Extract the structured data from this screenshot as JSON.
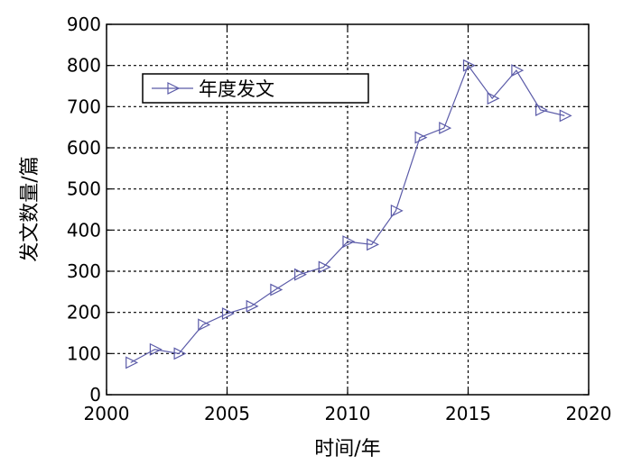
{
  "chart_data": {
    "type": "line",
    "title": "",
    "xlabel": "时间/年",
    "ylabel": "发文数量/篇",
    "xlim": [
      2000,
      2020
    ],
    "ylim": [
      0,
      900
    ],
    "x_ticks": [
      2000,
      2005,
      2010,
      2015,
      2020
    ],
    "y_ticks": [
      0,
      100,
      200,
      300,
      400,
      500,
      600,
      700,
      800,
      900
    ],
    "grid": true,
    "legend_position": "top-left",
    "series": [
      {
        "name": "年度发文",
        "color": "#5B5BA8",
        "marker": "triangle-right",
        "x": [
          2001,
          2002,
          2003,
          2004,
          2005,
          2006,
          2007,
          2008,
          2009,
          2010,
          2011,
          2012,
          2013,
          2014,
          2015,
          2016,
          2017,
          2018,
          2019
        ],
        "y": [
          78,
          110,
          100,
          170,
          197,
          215,
          255,
          292,
          310,
          372,
          365,
          447,
          625,
          648,
          800,
          720,
          788,
          692,
          678
        ]
      }
    ]
  }
}
